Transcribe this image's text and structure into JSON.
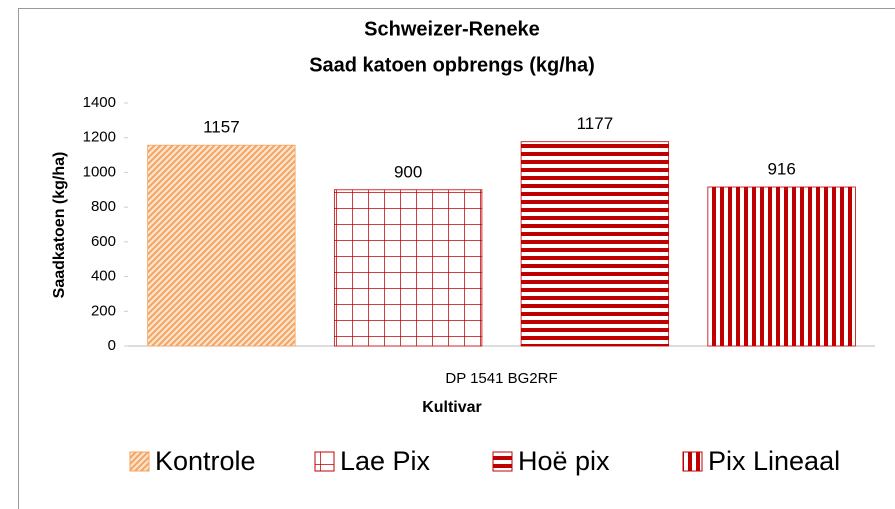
{
  "chart_data": {
    "type": "bar",
    "title": [
      "Schweizer-Reneke",
      "Saad katoen opbrengs (kg/ha)"
    ],
    "categories": [
      "DP 1541 BG2RF"
    ],
    "x_label": "Kultivar",
    "y_label": "Saadkatoen  (kg/ha)",
    "series": [
      {
        "name": "Kontrole",
        "color": "#f4a460",
        "pattern": "diagonal",
        "values": [
          1157
        ]
      },
      {
        "name": "Lae Pix",
        "color": "#c00000",
        "pattern": "grid",
        "values": [
          900
        ]
      },
      {
        "name": "Hoë pix",
        "color": "#c00000",
        "pattern": "horizontal",
        "values": [
          1177
        ]
      },
      {
        "name": "Pix Lineaal",
        "color": "#c00000",
        "pattern": "vertical",
        "values": [
          916
        ]
      }
    ],
    "ylim": [
      0,
      1400
    ],
    "yticks": [
      0,
      200,
      400,
      600,
      800,
      1000,
      1200,
      1400
    ],
    "legend": "bottom"
  }
}
